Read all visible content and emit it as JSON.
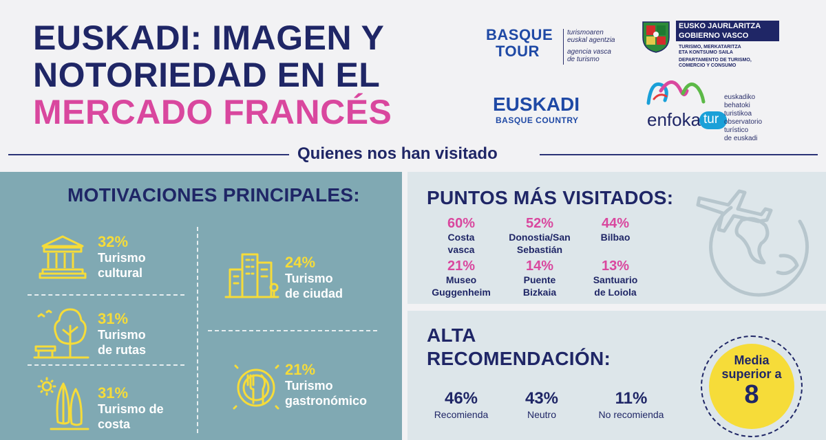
{
  "header": {
    "title_line1": "EUSKADI: IMAGEN Y",
    "title_line2": "NOTORIEDAD EN EL",
    "title_line3": "MERCADO FRANCÉS",
    "title_color_main": "#1f2666",
    "title_color_accent": "#d9479e"
  },
  "logos": {
    "basque_tour": {
      "word1": "BASQUE",
      "word2": "TOUR",
      "line1": "turismoaren",
      "line2": "euskal agentzia",
      "line3": "agencia vasca",
      "line4": "de turismo"
    },
    "gobierno": {
      "line1": "EUSKO JAURLARITZA",
      "line2": "GOBIERNO VASCO",
      "line3": "TURISMO, MERKATARITZA",
      "line4": "ETA KONTSUMO SAILA",
      "line5": "DEPARTAMENTO DE TURISMO,",
      "line6": "COMERCIO Y CONSUMO"
    },
    "euskadi": {
      "word1": "EUSKADI",
      "word2": "BASQUE COUNTRY"
    },
    "enfokatur": {
      "word": "enfoka",
      "tag": "tur",
      "line1": "euskadiko",
      "line2": "behatoki",
      "line3": "turistikoa",
      "line4": "observatorio",
      "line5": "turístico",
      "line6": "de euskadi"
    }
  },
  "section_subtitle": "Quienes nos han visitado",
  "motivations": {
    "heading": "MOTIVACIONES PRINCIPALES:",
    "items": [
      {
        "pct": "32%",
        "label1": "Turismo",
        "label2": "cultural",
        "icon": "temple-icon"
      },
      {
        "pct": "31%",
        "label1": "Turismo",
        "label2": "de rutas",
        "icon": "tree-bench-icon"
      },
      {
        "pct": "31%",
        "label1": "Turismo de",
        "label2": "costa",
        "icon": "surfboard-sun-icon"
      },
      {
        "pct": "24%",
        "label1": "Turismo",
        "label2": "de ciudad",
        "icon": "city-buildings-icon"
      },
      {
        "pct": "21%",
        "label1": "Turismo",
        "label2": "gastronómico",
        "icon": "plate-cutlery-icon"
      }
    ]
  },
  "visited": {
    "heading": "PUNTOS MÁS VISITADOS:",
    "items": [
      {
        "pct": "60%",
        "name1": "Costa",
        "name2": "vasca"
      },
      {
        "pct": "52%",
        "name1": "Donostia/San",
        "name2": "Sebastián"
      },
      {
        "pct": "44%",
        "name1": "Bilbao",
        "name2": ""
      },
      {
        "pct": "21%",
        "name1": "Museo",
        "name2": "Guggenheim"
      },
      {
        "pct": "14%",
        "name1": "Puente",
        "name2": "Bizkaia"
      },
      {
        "pct": "13%",
        "name1": "Santuario",
        "name2": "de Loiola"
      }
    ]
  },
  "recommendation": {
    "heading1": "ALTA",
    "heading2": "RECOMENDACIÓN:",
    "items": [
      {
        "pct": "46%",
        "label": "Recomienda"
      },
      {
        "pct": "43%",
        "label": "Neutro"
      },
      {
        "pct": "11%",
        "label": "No recomienda"
      }
    ],
    "badge_line1": "Media",
    "badge_line2": "superior a",
    "badge_value": "8"
  }
}
